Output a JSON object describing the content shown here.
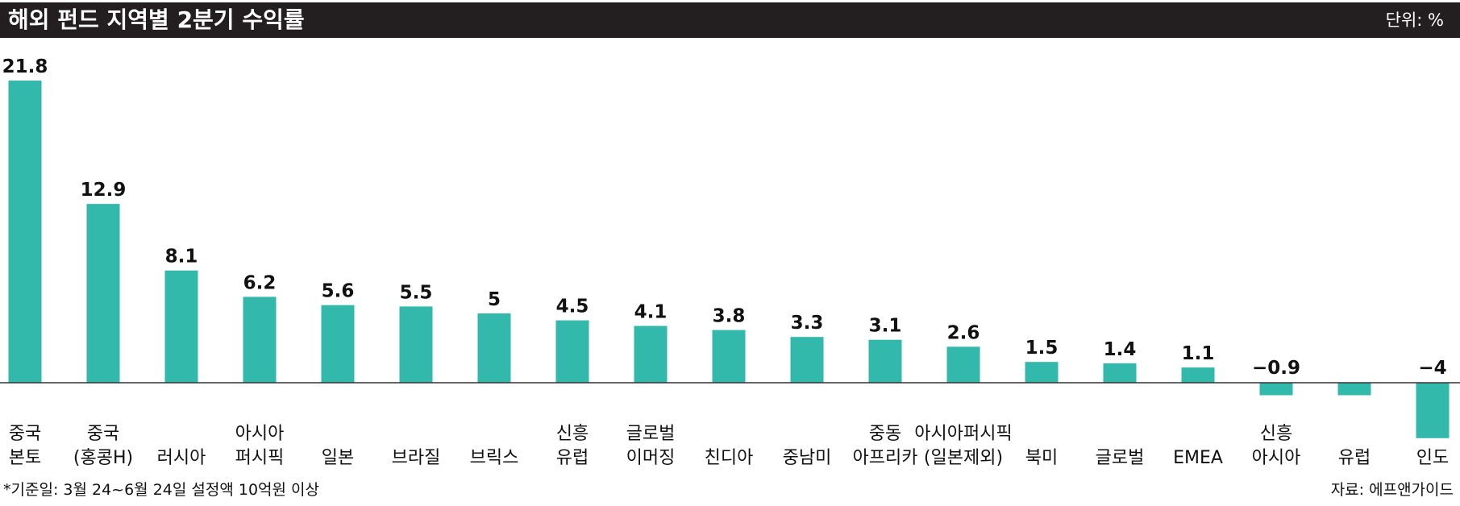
{
  "header": {
    "title": "해외 펀드 지역별 2분기 수익률",
    "unit": "단위: %"
  },
  "footer": {
    "note": "*기준일: 3월 24~6월 24일 설정액 10억원 이상",
    "source": "자료: 에프앤가이드"
  },
  "colors": {
    "bar": "#33b8ac",
    "header_bg": "#231f20",
    "baseline": "#333333"
  },
  "chart_data": {
    "type": "bar",
    "title": "해외 펀드 지역별 2분기 수익률",
    "unit": "%",
    "categories": [
      [
        "중국",
        "본토"
      ],
      [
        "중국",
        "(홍콩H)"
      ],
      [
        "러시아"
      ],
      [
        "아시아",
        "퍼시픽"
      ],
      [
        "일본"
      ],
      [
        "브라질"
      ],
      [
        "브릭스"
      ],
      [
        "신흥",
        "유럽"
      ],
      [
        "글로벌",
        "이머징"
      ],
      [
        "친디아"
      ],
      [
        "중남미"
      ],
      [
        "중동",
        "아프리카"
      ],
      [
        "아시아퍼시픽",
        "(일본제외)"
      ],
      [
        "북미"
      ],
      [
        "글로벌"
      ],
      [
        "EMEA"
      ],
      [
        "신흥",
        "아시아"
      ],
      [
        "유럽"
      ],
      [
        "인도"
      ]
    ],
    "values": [
      21.8,
      12.9,
      8.1,
      6.2,
      5.6,
      5.5,
      5,
      4.5,
      4.1,
      3.8,
      3.3,
      3.1,
      2.6,
      1.5,
      1.4,
      1.1,
      -0.9,
      -0.9,
      -4
    ],
    "value_labels": [
      "21.8",
      "12.9",
      "8.1",
      "6.2",
      "5.6",
      "5.5",
      "5",
      "4.5",
      "4.1",
      "3.8",
      "3.3",
      "3.1",
      "2.6",
      "1.5",
      "1.4",
      "1.1",
      "-0.9",
      "",
      "-4"
    ],
    "ylim": [
      -4.5,
      24
    ]
  }
}
